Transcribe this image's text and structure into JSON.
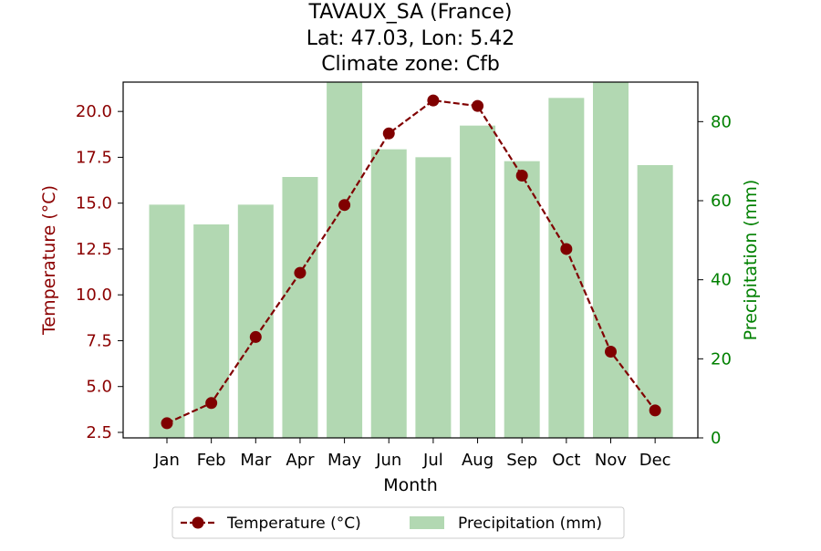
{
  "chart_data": {
    "type": "bar+line",
    "title_lines": [
      "TAVAUX_SA (France)",
      "Lat: 47.03, Lon: 5.42",
      "Climate zone: Cfb"
    ],
    "xlabel": "Month",
    "ylabel_left": "Temperature (°C)",
    "ylabel_right": "Precipitation (mm)",
    "categories": [
      "Jan",
      "Feb",
      "Mar",
      "Apr",
      "May",
      "Jun",
      "Jul",
      "Aug",
      "Sep",
      "Oct",
      "Nov",
      "Dec"
    ],
    "temperature": {
      "name": "Temperature (°C)",
      "values": [
        3.0,
        4.1,
        7.7,
        11.2,
        14.9,
        18.8,
        20.6,
        20.3,
        16.5,
        12.5,
        6.9,
        3.7
      ],
      "color": "#800000",
      "style": "dashed line with circle markers"
    },
    "precipitation": {
      "name": "Precipitation (mm)",
      "values": [
        59,
        54,
        59,
        66,
        90,
        73,
        71,
        79,
        70,
        86,
        90,
        69
      ],
      "color": "#b2d8b2"
    },
    "ylim_left": [
      2.2,
      21.6
    ],
    "yticks_left": [
      "2.5",
      "5.0",
      "7.5",
      "10.0",
      "12.5",
      "15.0",
      "17.5",
      "20.0"
    ],
    "ylim_right": [
      0,
      90
    ],
    "yticks_right": [
      "0",
      "20",
      "40",
      "60",
      "80"
    ],
    "left_axis_color": "#8b0000",
    "right_axis_color": "#008000",
    "grid": false,
    "legend_placement": "bottom-center"
  }
}
